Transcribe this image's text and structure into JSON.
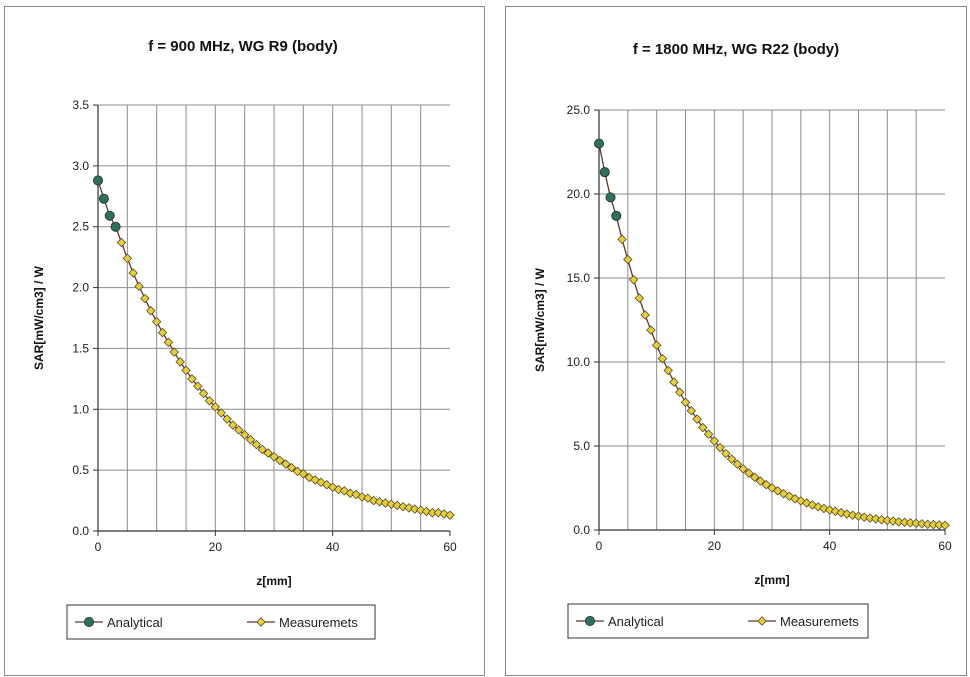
{
  "chart_data": [
    {
      "type": "line",
      "title": "f = 900 MHz, WG R9 (body)",
      "xlabel": "z[mm]",
      "ylabel": "SAR[mW/cm3] / W",
      "xlim": [
        0,
        60
      ],
      "ylim": [
        0,
        3.5
      ],
      "xticks": [
        0,
        20,
        40,
        60
      ],
      "yticks": [
        0.0,
        0.5,
        1.0,
        1.5,
        2.0,
        2.5,
        3.0,
        3.5
      ],
      "ytick_labels": [
        "0.0",
        "0.5",
        "1.0",
        "1.5",
        "2.0",
        "2.5",
        "3.0",
        "3.5"
      ],
      "grid": true,
      "legend_position": "bottom",
      "series": [
        {
          "name": "Analytical",
          "color": "#2f6f5e",
          "marker": "circle",
          "x": [
            0,
            1,
            2,
            3
          ],
          "y": [
            2.88,
            2.73,
            2.59,
            2.5
          ]
        },
        {
          "name": "Measuremets",
          "color": "#e3cf3a",
          "marker": "diamond",
          "x": [
            4,
            5,
            6,
            7,
            8,
            9,
            10,
            11,
            12,
            13,
            14,
            15,
            16,
            17,
            18,
            19,
            20,
            21,
            22,
            23,
            24,
            25,
            26,
            27,
            28,
            29,
            30,
            31,
            32,
            33,
            34,
            35,
            36,
            37,
            38,
            39,
            40,
            41,
            42,
            43,
            44,
            45,
            46,
            47,
            48,
            49,
            50,
            51,
            52,
            53,
            54,
            55,
            56,
            57,
            58,
            59,
            60
          ],
          "y": [
            2.37,
            2.24,
            2.12,
            2.01,
            1.91,
            1.81,
            1.72,
            1.63,
            1.55,
            1.47,
            1.39,
            1.32,
            1.25,
            1.19,
            1.13,
            1.07,
            1.02,
            0.97,
            0.92,
            0.87,
            0.83,
            0.79,
            0.75,
            0.71,
            0.67,
            0.64,
            0.61,
            0.58,
            0.55,
            0.52,
            0.49,
            0.47,
            0.44,
            0.42,
            0.4,
            0.38,
            0.36,
            0.34,
            0.33,
            0.31,
            0.3,
            0.28,
            0.27,
            0.25,
            0.24,
            0.23,
            0.22,
            0.21,
            0.2,
            0.19,
            0.18,
            0.17,
            0.16,
            0.15,
            0.15,
            0.14,
            0.13
          ]
        }
      ]
    },
    {
      "type": "line",
      "title": "f = 1800 MHz, WG R22 (body)",
      "xlabel": "z[mm]",
      "ylabel": "SAR[mW/cm3] / W",
      "xlim": [
        0,
        60
      ],
      "ylim": [
        0,
        25
      ],
      "xticks": [
        0,
        20,
        40,
        60
      ],
      "yticks": [
        0,
        5,
        10,
        15,
        20,
        25
      ],
      "ytick_labels": [
        "0.0",
        "5.0",
        "10.0",
        "15.0",
        "20.0",
        "25.0"
      ],
      "grid": true,
      "legend_position": "bottom",
      "series": [
        {
          "name": "Analytical",
          "color": "#2f6f5e",
          "marker": "circle",
          "x": [
            0,
            1,
            2,
            3
          ],
          "y": [
            23.0,
            21.3,
            19.8,
            18.7
          ]
        },
        {
          "name": "Measuremets",
          "color": "#e3cf3a",
          "marker": "diamond",
          "x": [
            4,
            5,
            6,
            7,
            8,
            9,
            10,
            11,
            12,
            13,
            14,
            15,
            16,
            17,
            18,
            19,
            20,
            21,
            22,
            23,
            24,
            25,
            26,
            27,
            28,
            29,
            30,
            31,
            32,
            33,
            34,
            35,
            36,
            37,
            38,
            39,
            40,
            41,
            42,
            43,
            44,
            45,
            46,
            47,
            48,
            49,
            50,
            51,
            52,
            53,
            54,
            55,
            56,
            57,
            58,
            59,
            60
          ],
          "y": [
            17.3,
            16.1,
            14.9,
            13.8,
            12.8,
            11.9,
            11.0,
            10.2,
            9.5,
            8.8,
            8.2,
            7.6,
            7.1,
            6.6,
            6.1,
            5.7,
            5.3,
            4.9,
            4.55,
            4.22,
            3.92,
            3.64,
            3.38,
            3.14,
            2.91,
            2.7,
            2.51,
            2.33,
            2.16,
            2.01,
            1.86,
            1.73,
            1.61,
            1.49,
            1.38,
            1.28,
            1.19,
            1.11,
            1.03,
            0.95,
            0.88,
            0.82,
            0.76,
            0.71,
            0.66,
            0.61,
            0.57,
            0.53,
            0.49,
            0.46,
            0.43,
            0.4,
            0.37,
            0.34,
            0.32,
            0.3,
            0.28
          ]
        }
      ]
    }
  ]
}
